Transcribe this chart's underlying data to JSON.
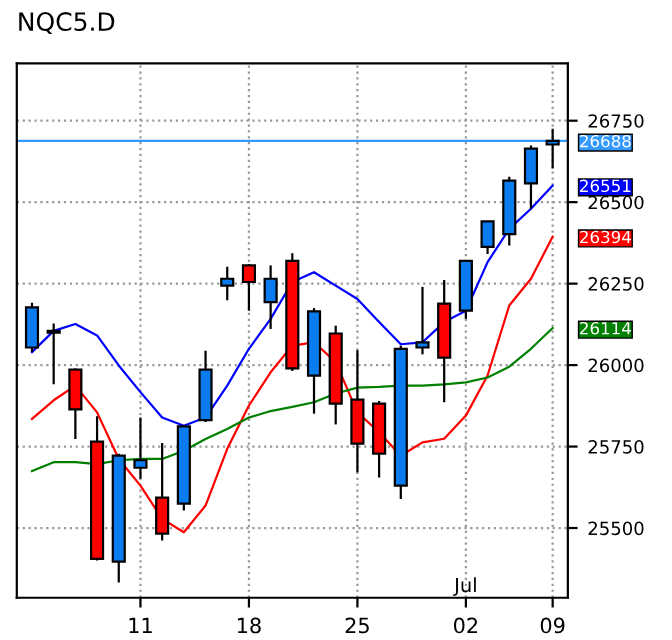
{
  "chart_data": {
    "type": "candlestick",
    "title": "NQC5.D",
    "categories": [
      null,
      null,
      null,
      null,
      null,
      "11",
      null,
      null,
      null,
      null,
      "18",
      null,
      null,
      null,
      null,
      "25",
      null,
      null,
      null,
      null,
      "02",
      null,
      null,
      null,
      "09"
    ],
    "ohlc": [
      [
        26054,
        26191,
        26040,
        26177
      ],
      [
        26105,
        26128,
        25941,
        26100
      ],
      [
        25986,
        25990,
        25773,
        25864
      ],
      [
        25765,
        25843,
        25400,
        25405
      ],
      [
        25397,
        25728,
        25333,
        25722
      ],
      [
        25685,
        25839,
        25651,
        25708
      ],
      [
        25593,
        25761,
        25462,
        25483
      ],
      [
        25575,
        25815,
        25554,
        25812
      ],
      [
        25831,
        26044,
        25825,
        25986
      ],
      [
        26244,
        26302,
        26199,
        26265
      ],
      [
        26306,
        26310,
        26167,
        26255
      ],
      [
        26193,
        26306,
        26111,
        26265
      ],
      [
        26320,
        26343,
        25982,
        25990
      ],
      [
        25968,
        26175,
        25851,
        26165
      ],
      [
        26097,
        26121,
        25818,
        25882
      ],
      [
        25894,
        26046,
        25671,
        25759
      ],
      [
        25882,
        25890,
        25655,
        25728
      ],
      [
        25630,
        26060,
        25589,
        26050
      ],
      [
        26054,
        26240,
        26033,
        26070
      ],
      [
        26189,
        26261,
        25886,
        26023
      ],
      [
        26167,
        26320,
        26142,
        26320
      ],
      [
        26363,
        26441,
        26341,
        26441
      ],
      [
        26402,
        26578,
        26367,
        26566
      ],
      [
        26558,
        26674,
        26480,
        26664
      ],
      [
        26677,
        26725,
        26603,
        26688
      ]
    ],
    "colors": [
      "#0a7cf0",
      "#0a7cf0",
      "#ff0000",
      "#ff0000",
      "#0a7cf0",
      "#0a7cf0",
      "#ff0000",
      "#0a7cf0",
      "#0a7cf0",
      "#0a7cf0",
      "#ff0000",
      "#0a7cf0",
      "#ff0000",
      "#0a7cf0",
      "#ff0000",
      "#ff0000",
      "#ff0000",
      "#0a7cf0",
      "#0a7cf0",
      "#ff0000",
      "#0a7cf0",
      "#0a7cf0",
      "#0a7cf0",
      "#0a7cf0",
      "#0a7cf0"
    ],
    "series": [
      {
        "type": "line",
        "color": "#0000ff",
        "values": [
          26040,
          26105,
          26126,
          26091,
          25999,
          25917,
          25839,
          25814,
          25839,
          25937,
          26050,
          26142,
          26255,
          26285,
          26244,
          26203,
          26132,
          26064,
          26070,
          26132,
          26167,
          26316,
          26418,
          26480,
          26551
        ],
        "value_labels": [
          null,
          null,
          null,
          null,
          null,
          null,
          null,
          null,
          null,
          null,
          null,
          null,
          null,
          null,
          null,
          null,
          null,
          null,
          null,
          null,
          null,
          null,
          null,
          null,
          "26551"
        ]
      },
      {
        "type": "line",
        "color": "#ff0000",
        "values": [
          25835,
          25892,
          25937,
          25855,
          25712,
          25630,
          25528,
          25487,
          25569,
          25743,
          25876,
          25978,
          26060,
          26070,
          26009,
          25855,
          25794,
          25722,
          25763,
          25774,
          25845,
          25968,
          26183,
          26265,
          26394
        ],
        "value_labels": [
          null,
          null,
          null,
          null,
          null,
          null,
          null,
          null,
          null,
          null,
          null,
          null,
          null,
          null,
          null,
          null,
          null,
          null,
          null,
          null,
          null,
          null,
          null,
          null,
          "26394"
        ]
      },
      {
        "type": "line",
        "color": "#008000",
        "values": [
          25675,
          25702,
          25702,
          25696,
          25708,
          25712,
          25712,
          25737,
          25773,
          25804,
          25839,
          25859,
          25872,
          25886,
          25913,
          25931,
          25933,
          25937,
          25937,
          25941,
          25947,
          25962,
          25995,
          26050,
          26114
        ],
        "value_labels": [
          null,
          null,
          null,
          null,
          null,
          null,
          null,
          null,
          null,
          null,
          null,
          null,
          null,
          null,
          null,
          null,
          null,
          null,
          null,
          null,
          null,
          null,
          null,
          null,
          "26114"
        ]
      }
    ],
    "ref_lines": [
      {
        "axis": "y",
        "value": 26688,
        "label": "26688",
        "color": "#3399ff"
      }
    ],
    "annotations": [
      "Jul"
    ],
    "ylim": [
      25286,
      26926
    ],
    "yticks": [
      25500,
      25750,
      26000,
      26250,
      26500,
      26750
    ],
    "grid": true,
    "legend": false
  }
}
